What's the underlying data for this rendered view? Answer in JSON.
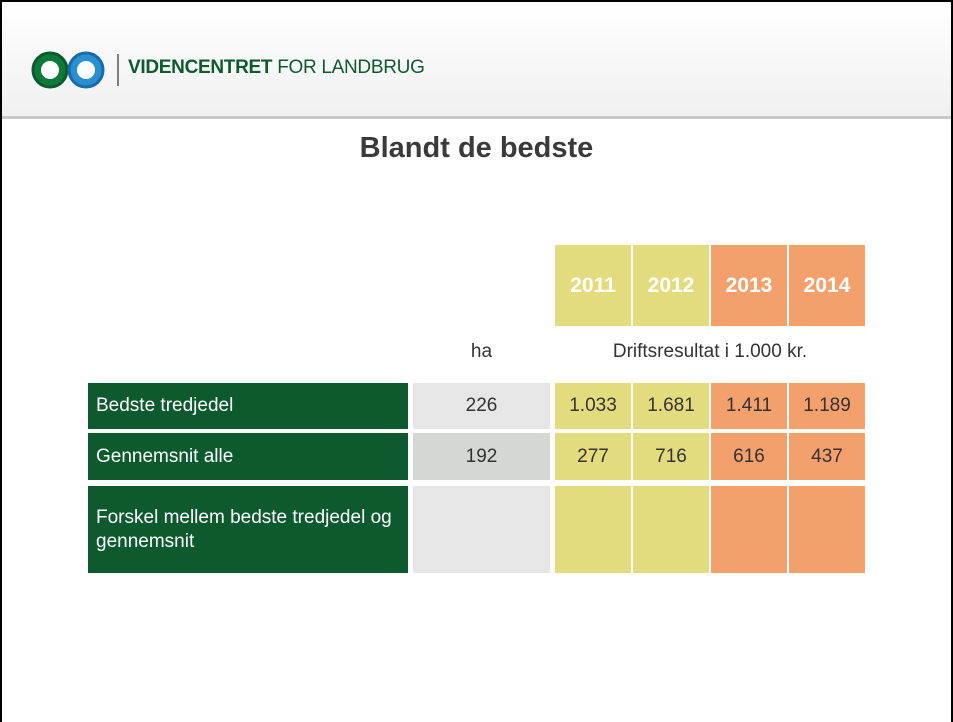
{
  "header": {
    "brand_bold": "VIDENCENTRET",
    "brand_rest": "FOR LANDBRUG"
  },
  "title": "Blandt de bedste",
  "table": {
    "years": [
      "2011",
      "2012",
      "2013",
      "2014"
    ],
    "unit_ha": "ha",
    "unit_result": "Driftsresultat i 1.000 kr.",
    "rows": [
      {
        "label": "Bedste tredjedel",
        "ha": "226",
        "values": [
          "1.033",
          "1.681",
          "1.411",
          "1.189"
        ]
      },
      {
        "label": "Gennemsnit alle",
        "ha": "192",
        "values": [
          "277",
          "716",
          "616",
          "437"
        ]
      },
      {
        "label": "Forskel mellem bedste tredjedel og gennemsnit"
      }
    ]
  }
}
